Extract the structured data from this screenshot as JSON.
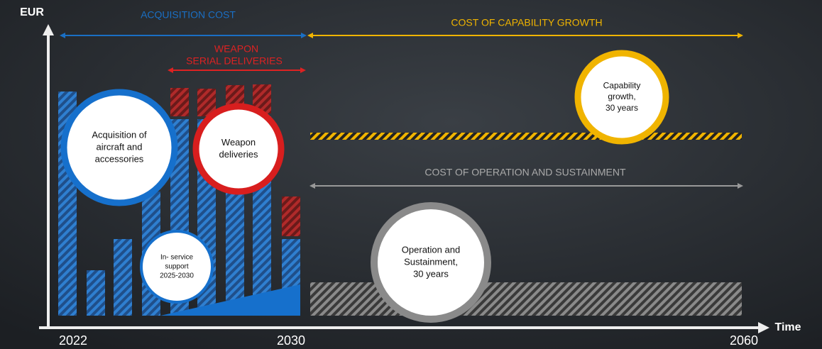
{
  "axes": {
    "y_label": "EUR",
    "x_label": "Time",
    "x_ticks": [
      "2022",
      "2030",
      "2060"
    ]
  },
  "spans": {
    "acquisition": "ACQUISITION COST",
    "capability": "COST OF CAPABILITY GROWTH",
    "weapon": [
      "WEAPON",
      "SERIAL DELIVERIES"
    ],
    "operation": "COST OF OPERATION AND SUSTAINMENT"
  },
  "circles": {
    "acquisition": [
      "Acquisition of",
      "aircraft and",
      "accessories"
    ],
    "weapon": [
      "Weapon",
      "deliveries"
    ],
    "in_service": [
      "In- service",
      "support",
      "2025-2030"
    ],
    "operation": [
      "Operation and",
      "Sustainment,",
      "30 years"
    ],
    "capability": [
      "Capability",
      "growth,",
      "30 years"
    ]
  }
}
